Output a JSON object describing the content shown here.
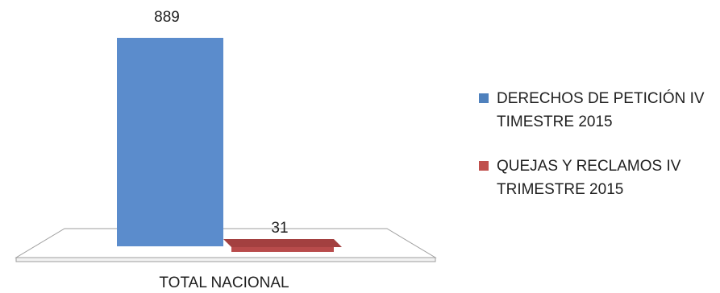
{
  "chart_data": {
    "type": "bar",
    "style": "3d-clustered-column",
    "categories": [
      "TOTAL NACIONAL"
    ],
    "series": [
      {
        "name": " DERECHOS DE PETICIÓN IV TIMESTRE 2015",
        "values": [
          889
        ],
        "color": "#5b8ccc"
      },
      {
        "name": "QUEJAS Y RECLAMOS IV TRIMESTRE 2015",
        "values": [
          31
        ],
        "color": "#b84b4b"
      }
    ],
    "data_labels": [
      "889",
      "31"
    ],
    "ylim": [
      0,
      889
    ],
    "grid": false,
    "legend_position": "right"
  }
}
